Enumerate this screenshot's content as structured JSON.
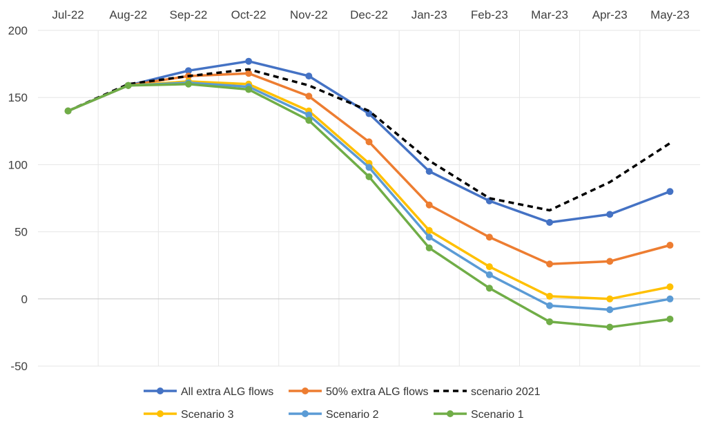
{
  "chart_data": {
    "type": "line",
    "categories": [
      "Jul-22",
      "Aug-22",
      "Sep-22",
      "Oct-22",
      "Nov-22",
      "Dec-22",
      "Jan-23",
      "Feb-23",
      "Mar-23",
      "Apr-23",
      "May-23"
    ],
    "ylim": [
      -50,
      200
    ],
    "yticks": [
      -50,
      0,
      50,
      100,
      150,
      200
    ],
    "grid": true,
    "legend_position": "bottom",
    "series": [
      {
        "name": "All extra ALG flows",
        "color": "#4472C4",
        "style": "solid",
        "markers": true,
        "values": [
          140,
          159,
          170,
          177,
          166,
          138,
          95,
          73,
          57,
          63,
          80
        ]
      },
      {
        "name": "50% extra ALG flows",
        "color": "#ED7D31",
        "style": "solid",
        "markers": true,
        "values": [
          140,
          159,
          166,
          168,
          151,
          117,
          70,
          46,
          26,
          28,
          40
        ]
      },
      {
        "name": "scenario 2021",
        "color": "#000000",
        "style": "dashed",
        "markers": false,
        "values": [
          140,
          160,
          166,
          171,
          159,
          140,
          103,
          75,
          66,
          87,
          116
        ]
      },
      {
        "name": "Scenario 3",
        "color": "#FFC000",
        "style": "solid",
        "markers": true,
        "values": [
          140,
          159,
          162,
          160,
          140,
          101,
          51,
          24,
          2,
          0,
          9
        ]
      },
      {
        "name": "Scenario 2",
        "color": "#5B9BD5",
        "style": "solid",
        "markers": true,
        "values": [
          140,
          159,
          161,
          158,
          137,
          98,
          46,
          18,
          -5,
          -8,
          0
        ]
      },
      {
        "name": "Scenario 1",
        "color": "#70AD47",
        "style": "solid",
        "markers": true,
        "values": [
          140,
          159,
          160,
          156,
          133,
          91,
          38,
          8,
          -17,
          -21,
          -15
        ]
      }
    ]
  }
}
